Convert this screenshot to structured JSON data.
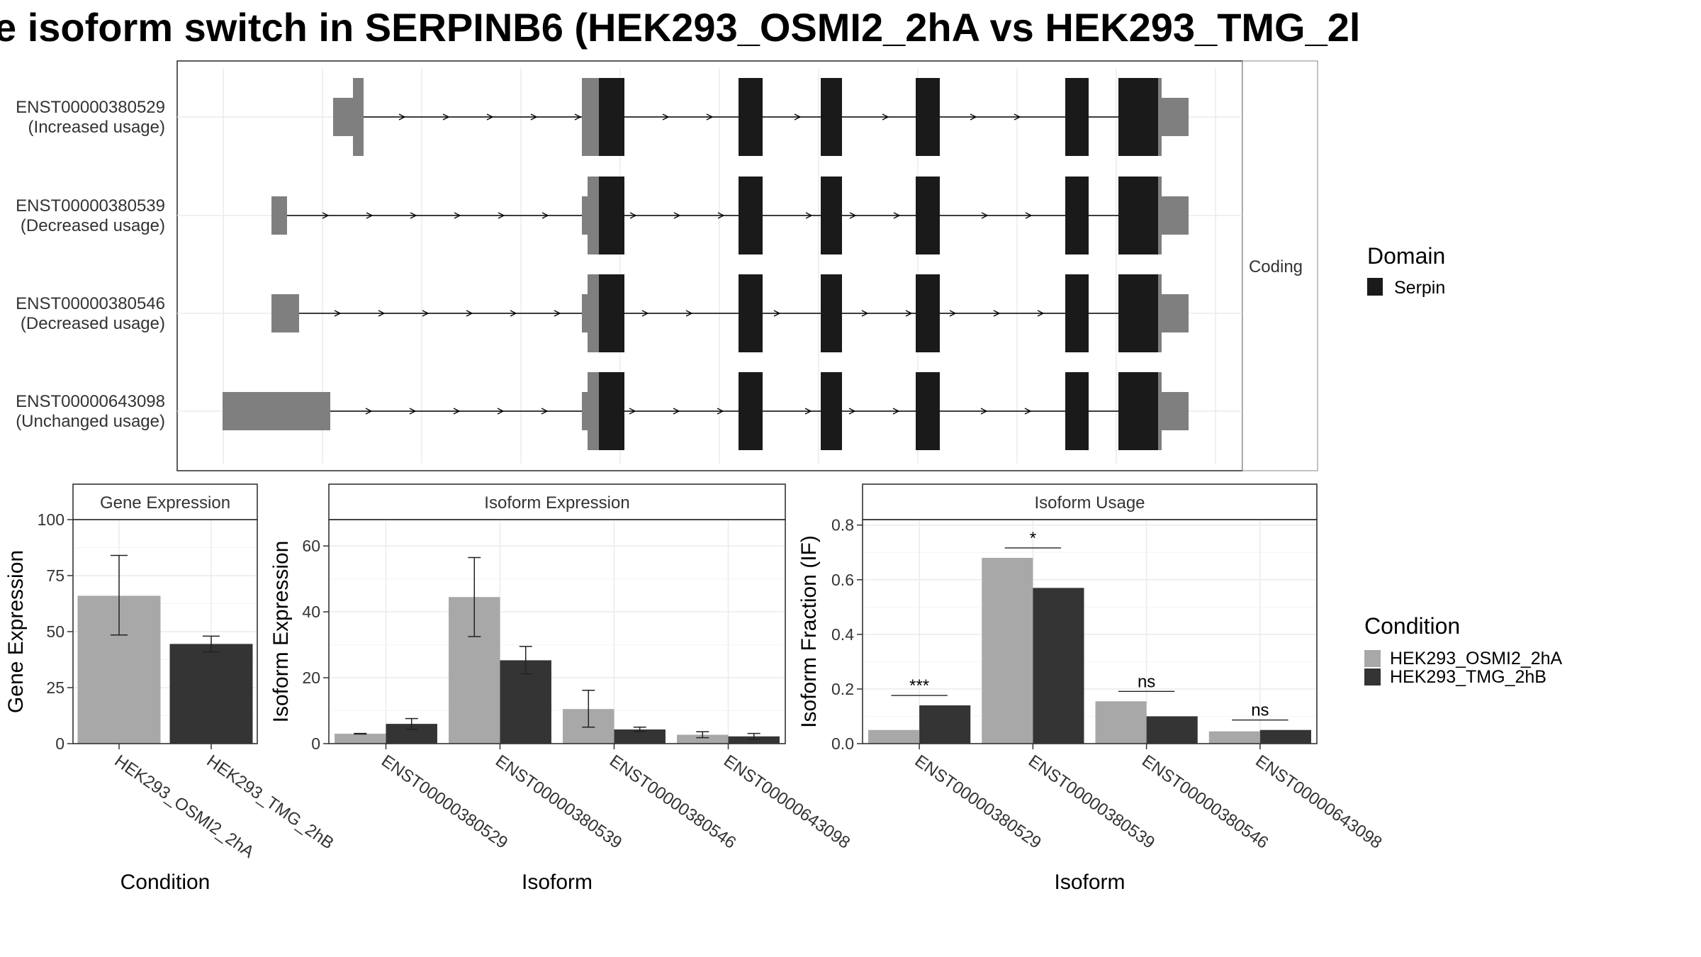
{
  "title": "e isoform switch in SERPINB6 (HEK293_OSMI2_2hA vs HEK293_TMG_2l",
  "colors": {
    "cond_a": "#a8a8a8",
    "cond_b": "#343434",
    "domain": "#1a1a1a",
    "utr": "#7f7f7f"
  },
  "transcript_panel": {
    "strip_label": "Coding",
    "transcripts": [
      {
        "id": "ENST00000380529",
        "status": "(Increased usage)"
      },
      {
        "id": "ENST00000380539",
        "status": "(Decreased usage)"
      },
      {
        "id": "ENST00000380546",
        "status": "(Decreased usage)"
      },
      {
        "id": "ENST00000643098",
        "status": "(Unchanged usage)"
      }
    ]
  },
  "legend_domain": {
    "title": "Domain",
    "items": [
      {
        "label": "Serpin",
        "color": "#1a1a1a"
      }
    ]
  },
  "legend_condition": {
    "title": "Condition",
    "items": [
      {
        "label": "HEK293_OSMI2_2hA",
        "color": "#a8a8a8"
      },
      {
        "label": "HEK293_TMG_2hB",
        "color": "#343434"
      }
    ]
  },
  "chart_data": [
    {
      "type": "bar",
      "panel": "Gene Expression",
      "xlabel": "Condition",
      "ylabel": "Gene Expression",
      "ylim": [
        0,
        100
      ],
      "yticks": [
        0,
        25,
        50,
        75,
        100
      ],
      "categories": [
        "HEK293_OSMI2_2hA",
        "HEK293_TMG_2hB"
      ],
      "values": [
        66,
        44.5
      ],
      "error_low": [
        48.5,
        41
      ],
      "error_high": [
        84,
        48
      ]
    },
    {
      "type": "bar",
      "panel": "Isoform Expression",
      "xlabel": "Isoform",
      "ylabel": "Isoform Expression",
      "ylim": [
        0,
        68
      ],
      "yticks": [
        0,
        20,
        40,
        60
      ],
      "categories": [
        "ENST00000380529",
        "ENST00000380539",
        "ENST00000380546",
        "ENST00000643098"
      ],
      "series": [
        {
          "name": "HEK293_OSMI2_2hA",
          "values": [
            3.0,
            44.5,
            10.5,
            2.7
          ],
          "error_low": [
            2.9,
            32.5,
            5,
            1.8
          ],
          "error_high": [
            3.1,
            56.5,
            16.2,
            3.6
          ]
        },
        {
          "name": "HEK293_TMG_2hB",
          "values": [
            6.0,
            25.3,
            4.3,
            2.2
          ],
          "error_low": [
            4.3,
            21.2,
            3.6,
            1.3
          ],
          "error_high": [
            7.6,
            29.5,
            5.0,
            3.1
          ]
        }
      ]
    },
    {
      "type": "bar",
      "panel": "Isoform Usage",
      "xlabel": "Isoform",
      "ylabel": "Isoform Fraction (IF)",
      "ylim": [
        0,
        0.82
      ],
      "yticks": [
        0.0,
        0.2,
        0.4,
        0.6,
        0.8
      ],
      "categories": [
        "ENST00000380529",
        "ENST00000380539",
        "ENST00000380546",
        "ENST00000643098"
      ],
      "series": [
        {
          "name": "HEK293_OSMI2_2hA",
          "values": [
            0.05,
            0.68,
            0.155,
            0.045
          ]
        },
        {
          "name": "HEK293_TMG_2hB",
          "values": [
            0.14,
            0.57,
            0.1,
            0.05
          ]
        }
      ],
      "significance": [
        "***",
        "*",
        "ns",
        "ns"
      ]
    }
  ]
}
